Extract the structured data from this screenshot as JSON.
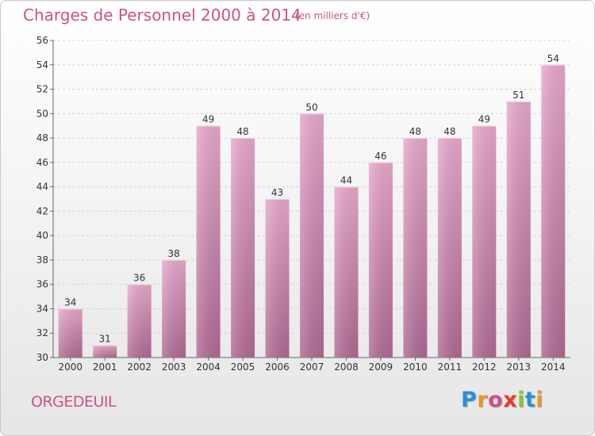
{
  "header": {
    "title": "Charges de Personnel 2000 à 2014",
    "subtitle": "(en milliers d'€)"
  },
  "footer": {
    "commune": "ORGEDEUIL",
    "logo_text": "Proxiti",
    "logo_letters": [
      {
        "char": "P",
        "color": "#2a8fd8"
      },
      {
        "char": "r",
        "color": "#e8962a"
      },
      {
        "char": "o",
        "color": "#d0508a"
      },
      {
        "char": "x",
        "color": "#e83a2a"
      },
      {
        "char": "i",
        "color": "#8ac23a"
      },
      {
        "char": "t",
        "color": "#2a8fd8"
      },
      {
        "char": "i",
        "color": "#e8962a"
      }
    ]
  },
  "chart_data": {
    "type": "bar",
    "categories": [
      "2000",
      "2001",
      "2002",
      "2003",
      "2004",
      "2005",
      "2006",
      "2007",
      "2008",
      "2009",
      "2010",
      "2011",
      "2012",
      "2013",
      "2014"
    ],
    "values": [
      34,
      31,
      36,
      38,
      49,
      48,
      43,
      50,
      44,
      46,
      48,
      48,
      49,
      51,
      54
    ],
    "title": "Charges de Personnel 2000 à 2014",
    "xlabel": "",
    "ylabel": "",
    "ylim": [
      30,
      56
    ],
    "yticks": [
      30,
      32,
      34,
      36,
      38,
      40,
      42,
      44,
      46,
      48,
      50,
      52,
      54,
      56
    ],
    "grid": true,
    "bar_color_top": "#e8a8cc",
    "bar_color_bottom": "#b06a94",
    "label_color": "#333333"
  }
}
